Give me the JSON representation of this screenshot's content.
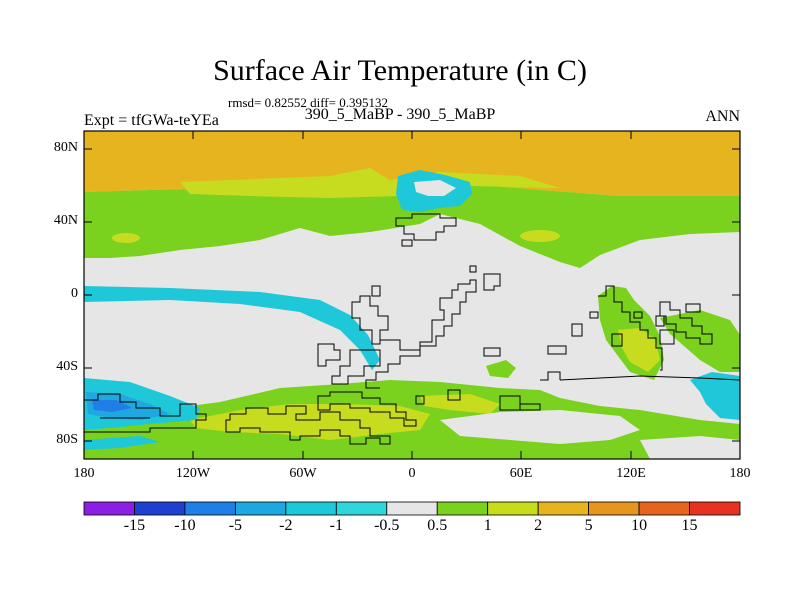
{
  "title": "Surface Air Temperature (in C)",
  "stats_line": "rmsd= 0.82552 diff= 0.395132",
  "subtitle": "390_5_MaBP - 390_5_MaBP",
  "experiment_label": "Expt = tfGWa-teYEa",
  "season": "ANN",
  "y_axis_ticks": [
    "80N",
    "40N",
    "0",
    "40S",
    "80S"
  ],
  "x_axis_ticks": [
    "180",
    "120W",
    "60W",
    "0",
    "60E",
    "120E",
    "180"
  ],
  "colorbar": {
    "labels": [
      "-15",
      "-10",
      "-5",
      "-2",
      "-1",
      "-0.5",
      "0.5",
      "1",
      "2",
      "5",
      "10",
      "15"
    ],
    "colors": [
      "#8b1fe6",
      "#1f3fd0",
      "#1f7fe6",
      "#1fa8e0",
      "#1fc8d8",
      "#2fd6dc",
      "#e6e6e6",
      "#7ad21f",
      "#c8dc1f",
      "#e6b41f",
      "#e6961f",
      "#e6641f",
      "#e6321f"
    ]
  },
  "map_colors": {
    "neutral": "#e6e6e6",
    "green": "#7ad21f",
    "yellow_green": "#c8dc1f",
    "orange": "#e6b41f",
    "cyan": "#1fc8d8",
    "blue": "#1fa8e0",
    "dark_blue": "#1f7fe6"
  }
}
